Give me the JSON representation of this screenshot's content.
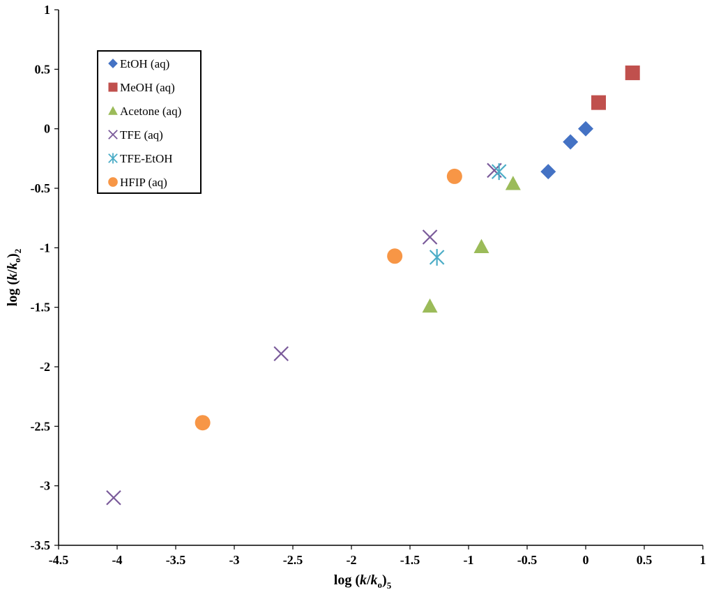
{
  "chart_data": {
    "type": "scatter",
    "title": "",
    "xlim": [
      -4.5,
      1
    ],
    "ylim": [
      -3.5,
      1
    ],
    "xticks": [
      -4.5,
      -4,
      -3.5,
      -3,
      -2.5,
      -2,
      -1.5,
      -1,
      -0.5,
      0,
      0.5,
      1
    ],
    "yticks": [
      1,
      0.5,
      0,
      -0.5,
      -1,
      -1.5,
      -2,
      -2.5,
      -3,
      -3.5
    ],
    "xtick_labels": [
      "-4.5",
      "-4",
      "-3.5",
      "-3",
      "-2.5",
      "-2",
      "-1.5",
      "-1",
      "-0.5",
      "0",
      "0.5",
      "1"
    ],
    "ytick_labels": [
      "1",
      "0.5",
      "0",
      "-0.5",
      "-1",
      "-1.5",
      "-2",
      "-2.5",
      "-3",
      "-3.5"
    ],
    "xlabel": {
      "pre": "log (",
      "k": "k",
      "slash": "/",
      "k0": "k",
      "sub0": "o",
      "post": ")",
      "sub": "5"
    },
    "ylabel": {
      "pre": "log (",
      "k": "k",
      "slash": "/",
      "k0": "k",
      "sub0": "o",
      "post": ")",
      "sub": "2"
    },
    "legend_position": "top-left",
    "series": [
      {
        "name": "EtOH (aq)",
        "marker": "diamond",
        "color": "#4472C4",
        "points": [
          [
            0,
            0
          ],
          [
            -0.13,
            -0.11
          ],
          [
            -0.32,
            -0.36
          ]
        ]
      },
      {
        "name": "MeOH (aq)",
        "marker": "square",
        "color": "#C0504D",
        "points": [
          [
            0.4,
            0.47
          ],
          [
            0.11,
            0.22
          ]
        ]
      },
      {
        "name": "Acetone (aq)",
        "marker": "triangle",
        "color": "#9BBB59",
        "points": [
          [
            -0.62,
            -0.46
          ],
          [
            -0.89,
            -0.99
          ],
          [
            -1.33,
            -1.49
          ]
        ]
      },
      {
        "name": "TFE (aq)",
        "marker": "x",
        "color": "#7A5A9A",
        "points": [
          [
            -0.78,
            -0.35
          ],
          [
            -1.33,
            -0.91
          ],
          [
            -2.6,
            -1.89
          ],
          [
            -4.03,
            -3.1
          ]
        ]
      },
      {
        "name": "TFE-EtOH",
        "marker": "asterisk",
        "color": "#4BACC6",
        "points": [
          [
            -0.74,
            -0.36
          ],
          [
            -1.27,
            -1.08
          ]
        ]
      },
      {
        "name": "HFIP (aq)",
        "marker": "circle",
        "color": "#F79646",
        "points": [
          [
            -1.12,
            -0.4
          ],
          [
            -1.63,
            -1.07
          ],
          [
            -3.27,
            -2.47
          ]
        ]
      }
    ]
  }
}
